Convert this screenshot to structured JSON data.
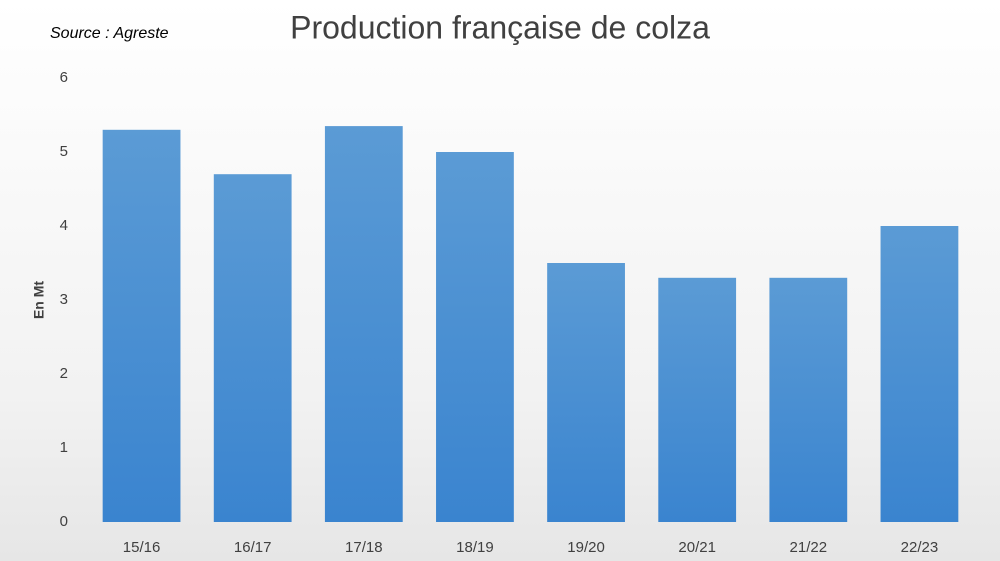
{
  "chart_data": {
    "type": "bar",
    "title": "Production française de colza",
    "source": "Source : Agreste",
    "y_label": "En Mt",
    "categories": [
      "15/16",
      "16/17",
      "17/18",
      "18/19",
      "19/20",
      "20/21",
      "21/22",
      "22/23"
    ],
    "values": [
      5.3,
      4.7,
      5.35,
      5.0,
      3.5,
      3.3,
      3.3,
      4.0
    ],
    "color": "#4a8fd6",
    "ylim": [
      0,
      6
    ],
    "yticks": [
      0,
      1,
      2,
      3,
      4,
      5,
      6
    ],
    "grid": false
  }
}
